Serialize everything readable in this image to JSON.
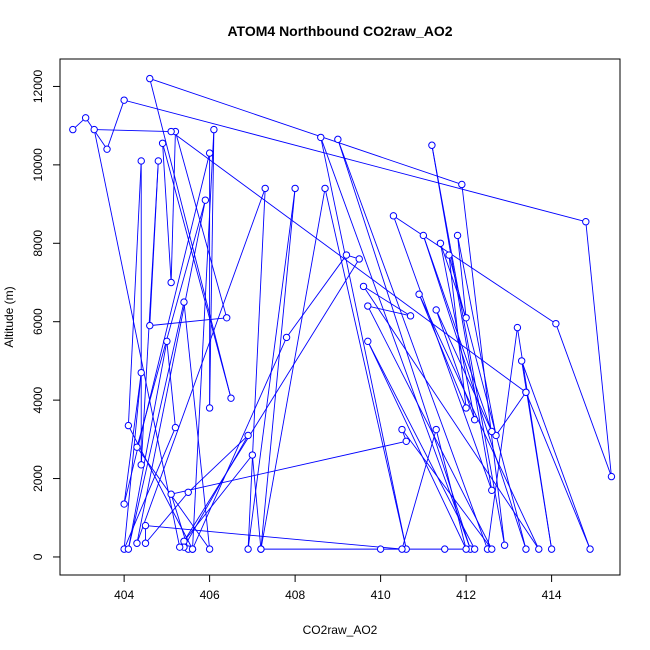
{
  "chart_data": {
    "type": "line",
    "title": "ATOM4 Northbound CO2raw_AO2",
    "xlabel": "CO2raw_AO2",
    "ylabel": "Altitude (m)",
    "xlim": [
      402.5,
      415.6
    ],
    "ylim": [
      -460,
      12700
    ],
    "x_ticks": [
      404,
      406,
      408,
      410,
      412,
      414
    ],
    "y_ticks": [
      0,
      2000,
      4000,
      6000,
      8000,
      10000,
      12000
    ],
    "series_color": "#0000ff",
    "marker": "open-circle",
    "lines": true,
    "grid": false,
    "points": [
      [
        402.8,
        10900
      ],
      [
        403.1,
        11200
      ],
      [
        403.6,
        10400
      ],
      [
        404.0,
        11650
      ],
      [
        414.8,
        8550
      ],
      [
        415.4,
        2050
      ],
      [
        414.1,
        5950
      ],
      [
        410.3,
        8700
      ],
      [
        412.6,
        1700
      ],
      [
        411.2,
        10500
      ],
      [
        412.9,
        300
      ],
      [
        411.9,
        9500
      ],
      [
        404.6,
        12200
      ],
      [
        406.5,
        4050
      ],
      [
        404.9,
        10550
      ],
      [
        405.1,
        7000
      ],
      [
        405.2,
        10850
      ],
      [
        406.4,
        6100
      ],
      [
        404.6,
        5900
      ],
      [
        404.8,
        10100
      ],
      [
        404.4,
        2350
      ],
      [
        404.4,
        10100
      ],
      [
        404.1,
        3350
      ],
      [
        405.6,
        200
      ],
      [
        406.1,
        10900
      ],
      [
        406.0,
        3800
      ],
      [
        406.0,
        10300
      ],
      [
        404.0,
        1350
      ],
      [
        404.4,
        4700
      ],
      [
        404.0,
        200
      ],
      [
        405.2,
        3300
      ],
      [
        405.0,
        5500
      ],
      [
        404.1,
        200
      ],
      [
        405.4,
        6500
      ],
      [
        406.0,
        200
      ],
      [
        404.3,
        2800
      ],
      [
        405.9,
        9100
      ],
      [
        404.3,
        350
      ],
      [
        407.3,
        9400
      ],
      [
        406.9,
        200
      ],
      [
        408.0,
        9400
      ],
      [
        407.2,
        200
      ],
      [
        408.7,
        9400
      ],
      [
        410.6,
        200
      ],
      [
        408.6,
        10700
      ],
      [
        412.1,
        200
      ],
      [
        409.0,
        10650
      ],
      [
        412.5,
        200
      ],
      [
        413.2,
        5850
      ],
      [
        414.0,
        200
      ],
      [
        413.3,
        5000
      ],
      [
        414.9,
        200
      ],
      [
        413.4,
        4200
      ],
      [
        412.7,
        3100
      ],
      [
        411.8,
        8200
      ],
      [
        412.0,
        6100
      ],
      [
        411.4,
        8000
      ],
      [
        412.2,
        3500
      ],
      [
        411.3,
        6300
      ],
      [
        412.6,
        3200
      ],
      [
        411.0,
        8200
      ],
      [
        413.4,
        200
      ],
      [
        411.6,
        7700
      ],
      [
        412.0,
        3800
      ],
      [
        410.9,
        6700
      ],
      [
        413.7,
        200
      ],
      [
        409.6,
        6900
      ],
      [
        410.7,
        6150
      ],
      [
        409.7,
        6400
      ],
      [
        412.6,
        200
      ],
      [
        410.5,
        3250
      ],
      [
        410.6,
        2950
      ],
      [
        405.1,
        1600
      ],
      [
        405.5,
        200
      ],
      [
        405.6,
        200
      ],
      [
        407.8,
        5600
      ],
      [
        409.2,
        7700
      ],
      [
        409.5,
        7600
      ],
      [
        405.4,
        400
      ],
      [
        407.0,
        2600
      ],
      [
        407.2,
        200
      ],
      [
        410.0,
        200
      ],
      [
        411.5,
        200
      ],
      [
        412.2,
        200
      ],
      [
        409.7,
        5500
      ],
      [
        412.0,
        200
      ],
      [
        411.3,
        3250
      ],
      [
        410.5,
        200
      ],
      [
        404.5,
        800
      ],
      [
        404.5,
        350
      ],
      [
        405.5,
        1650
      ],
      [
        406.9,
        3100
      ],
      [
        405.4,
        250
      ],
      [
        405.3,
        250
      ],
      [
        403.3,
        10900
      ],
      [
        405.1,
        10850
      ],
      [
        413.4,
        4200
      ]
    ]
  }
}
